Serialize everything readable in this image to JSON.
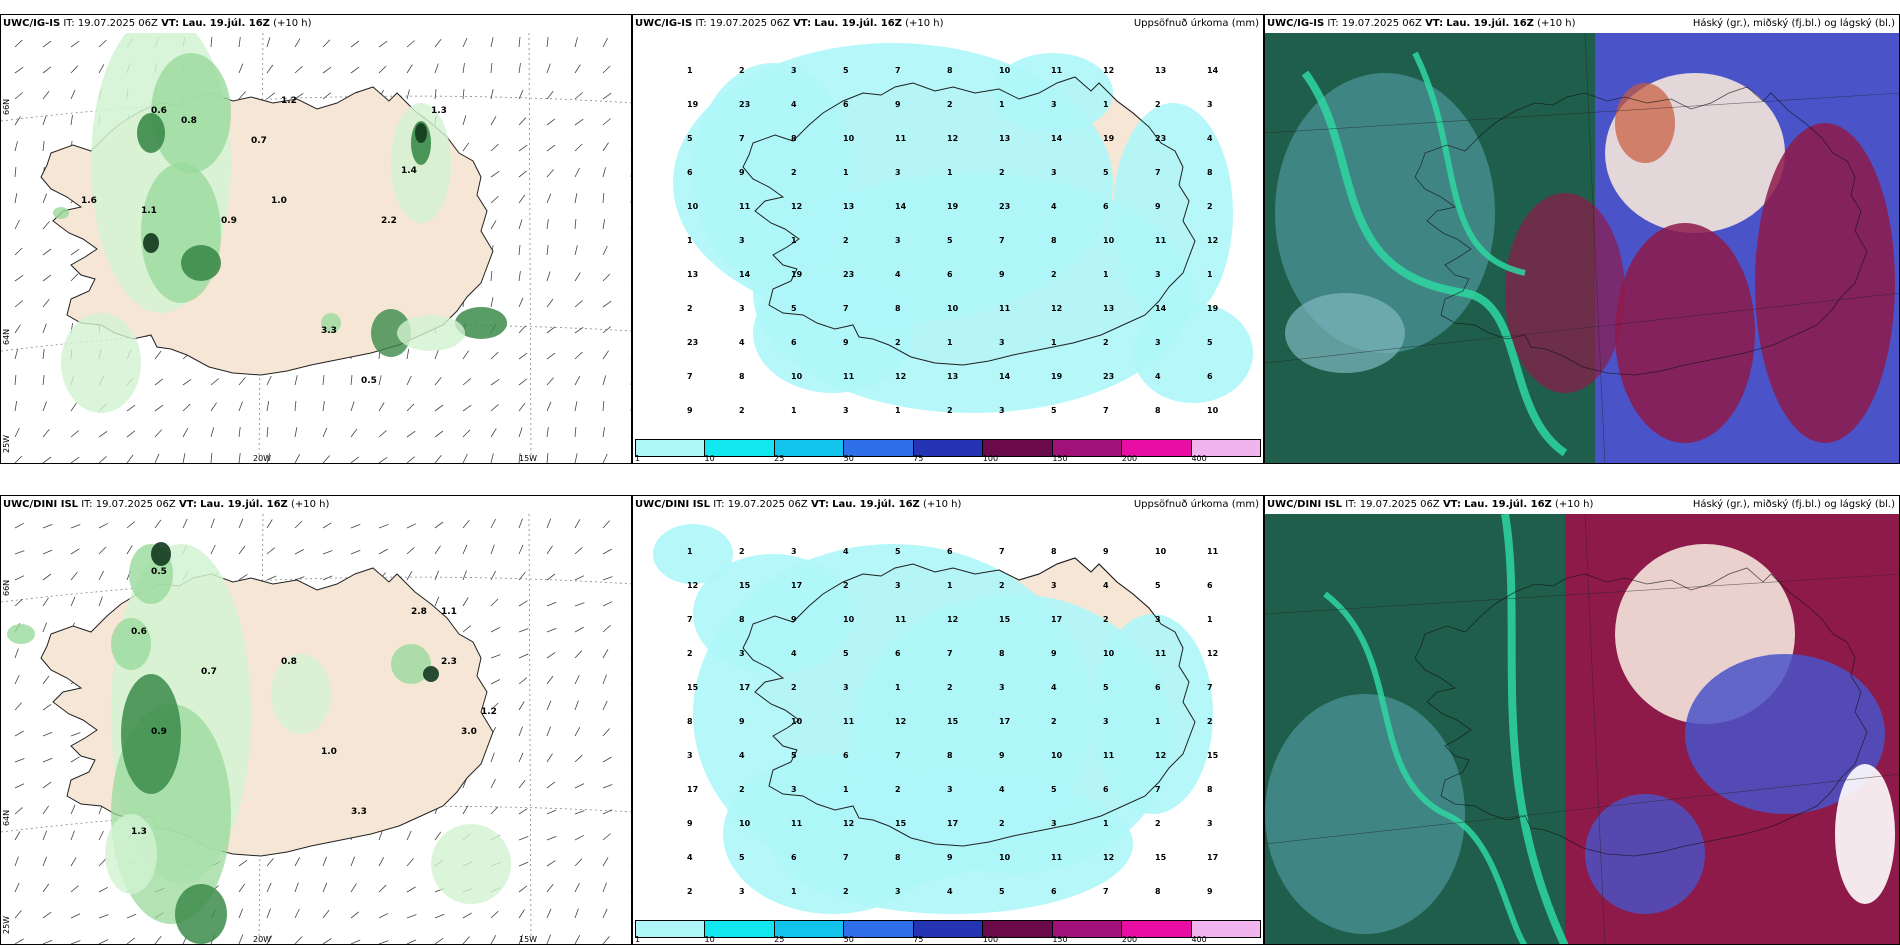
{
  "panels": [
    {
      "model": "UWC/IG-IS",
      "it_label": "IT:",
      "it": "19.07.2025 06Z",
      "vt_label": "VT:",
      "vt": "Lau. 19.júl. 16Z",
      "lead": "(+10 h)",
      "title_right": ""
    },
    {
      "model": "UWC/IG-IS",
      "it_label": "IT:",
      "it": "19.07.2025 06Z",
      "vt_label": "VT:",
      "vt": "Lau. 19.júl. 16Z",
      "lead": "(+10 h)",
      "title_right": "Uppsöfnuð úrkoma (mm)"
    },
    {
      "model": "UWC/IG-IS",
      "it_label": "IT:",
      "it": "19.07.2025 06Z",
      "vt_label": "VT:",
      "vt": "Lau. 19.júl. 16Z",
      "lead": "(+10 h)",
      "title_right": "Háský (gr.), miðský (fj.bl.) og lágský (bl.)"
    },
    {
      "model": "UWC/DINI ISL",
      "it_label": "IT:",
      "it": "19.07.2025 06Z",
      "vt_label": "VT:",
      "vt": "Lau. 19.júl. 16Z",
      "lead": "(+10 h)",
      "title_right": ""
    },
    {
      "model": "UWC/DINI ISL",
      "it_label": "IT:",
      "it": "19.07.2025 06Z",
      "vt_label": "VT:",
      "vt": "Lau. 19.júl. 16Z",
      "lead": "(+10 h)",
      "title_right": "Uppsöfnuð úrkoma (mm)"
    },
    {
      "model": "UWC/DINI ISL",
      "it_label": "IT:",
      "it": "19.07.2025 06Z",
      "vt_label": "VT:",
      "vt": "Lau. 19.júl. 16Z",
      "lead": "(+10 h)",
      "title_right": "Háský (gr.), miðský (fj.bl.) og lágský (bl.)"
    }
  ],
  "axis_labels": {
    "lat66": "66N",
    "lat64": "64N",
    "lon25": "25W",
    "lon20": "20W",
    "lon15": "15W"
  },
  "colorbar": {
    "labels": [
      "1",
      "10",
      "25",
      "50",
      "75",
      "100",
      "150",
      "200",
      "400"
    ],
    "colors": [
      "#aef6f8",
      "#12e6ee",
      "#12c4ec",
      "#2f6fe8",
      "#2534b2",
      "#6b0a4a",
      "#a0127a",
      "#e80ea4",
      "#f2b4ee"
    ]
  },
  "precip_labels_top": [
    "1",
    "2",
    "3",
    "5",
    "7",
    "8",
    "10",
    "11",
    "12",
    "13",
    "14",
    "19",
    "23",
    "4",
    "6",
    "9",
    "2",
    "1",
    "3"
  ],
  "precip_labels_bottom": [
    "1",
    "2",
    "3",
    "4",
    "5",
    "6",
    "7",
    "8",
    "9",
    "10",
    "11",
    "12",
    "15",
    "17",
    "2",
    "3"
  ],
  "convective_labels_top": [
    "0.6",
    "0.8",
    "0.7",
    "1.0",
    "1.1",
    "1.2",
    "1.3",
    "1.4",
    "0.9",
    "0.5",
    "1.6",
    "2.2",
    "3.3"
  ],
  "convective_labels_bottom": [
    "0.5",
    "0.6",
    "0.7",
    "0.8",
    "0.9",
    "1.0",
    "1.1",
    "1.2",
    "1.3",
    "2.3",
    "2.8",
    "3.0",
    "3.3"
  ],
  "palette": {
    "land": "#f6e6d6",
    "precip_light": "#aef6f8",
    "conv_light": "#d2f3d2",
    "conv_mid": "#9ad99c",
    "conv_dark": "#3c8b4a",
    "conv_core": "#12391f",
    "cloud_high": "#1f5e4a",
    "cloud_mid": "#4a54c8",
    "cloud_low": "#8e1a4a",
    "cloud_mint": "#2ed6a0",
    "cloud_teal": "#58a6b4"
  }
}
